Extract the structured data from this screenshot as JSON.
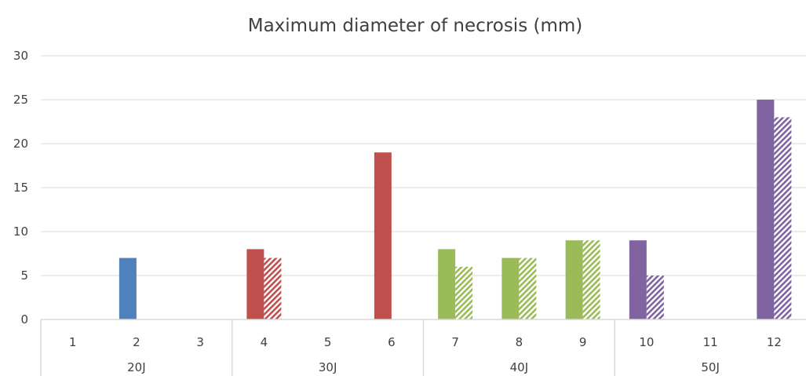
{
  "chart_data": {
    "type": "bar",
    "title": "Maximum diameter of necrosis (mm)",
    "xlabel": "",
    "ylabel": "",
    "ylim": [
      0,
      30
    ],
    "yticks": [
      0,
      5,
      10,
      15,
      20,
      25,
      30
    ],
    "grid": true,
    "legend": "none",
    "categories": [
      "1",
      "2",
      "3",
      "4",
      "5",
      "6",
      "7",
      "8",
      "9",
      "10",
      "11",
      "12"
    ],
    "groups": [
      {
        "label": "20J",
        "categories": [
          "1",
          "2",
          "3"
        ],
        "color": "#4F81BD"
      },
      {
        "label": "30J",
        "categories": [
          "4",
          "5",
          "6"
        ],
        "color": "#C0504D"
      },
      {
        "label": "40J",
        "categories": [
          "7",
          "8",
          "9"
        ],
        "color": "#9BBB59"
      },
      {
        "label": "50J",
        "categories": [
          "10",
          "11",
          "12"
        ],
        "color": "#8064A2"
      }
    ],
    "series": [
      {
        "pattern": "solid",
        "values": [
          0,
          7,
          0,
          8,
          0,
          19,
          8,
          7,
          9,
          9,
          0,
          25
        ]
      },
      {
        "pattern": "hatched",
        "values": [
          0,
          0,
          0,
          7,
          0,
          0,
          6,
          7,
          9,
          5,
          0,
          23
        ]
      }
    ]
  }
}
